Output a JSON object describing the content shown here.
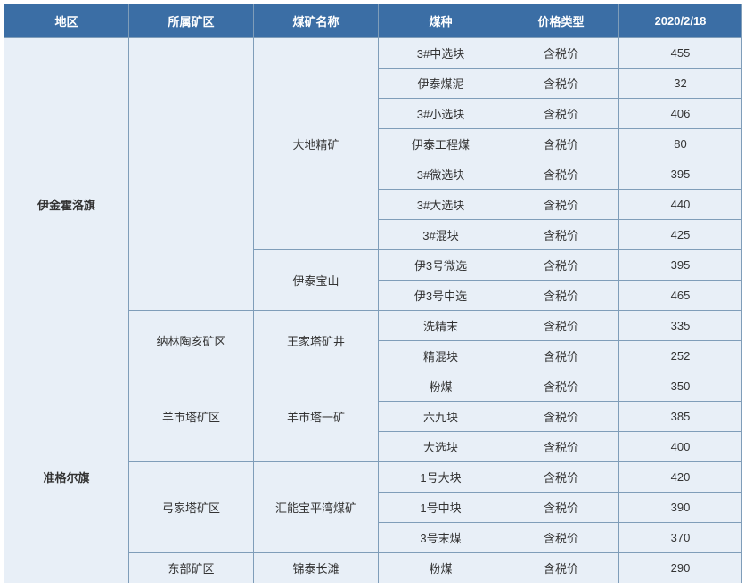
{
  "table": {
    "headers": [
      "地区",
      "所属矿区",
      "煤矿名称",
      "煤种",
      "价格类型",
      "2020/2/18"
    ],
    "rows": [
      {
        "region": "伊金霍洛旗",
        "area": "",
        "mine": "大地精矿",
        "coal": "3#中选块",
        "price_type": "含税价",
        "value": "455"
      },
      {
        "region": "",
        "area": "",
        "mine": "",
        "coal": "伊泰煤泥",
        "price_type": "含税价",
        "value": "32"
      },
      {
        "region": "",
        "area": "",
        "mine": "",
        "coal": "3#小选块",
        "price_type": "含税价",
        "value": "406"
      },
      {
        "region": "",
        "area": "",
        "mine": "",
        "coal": "伊泰工程煤",
        "price_type": "含税价",
        "value": "80"
      },
      {
        "region": "",
        "area": "",
        "mine": "",
        "coal": "3#微选块",
        "price_type": "含税价",
        "value": "395"
      },
      {
        "region": "",
        "area": "",
        "mine": "",
        "coal": "3#大选块",
        "price_type": "含税价",
        "value": "440"
      },
      {
        "region": "",
        "area": "",
        "mine": "",
        "coal": "3#混块",
        "price_type": "含税价",
        "value": "425"
      },
      {
        "region": "",
        "area": "",
        "mine": "伊泰宝山",
        "coal": "伊3号微选",
        "price_type": "含税价",
        "value": "395"
      },
      {
        "region": "",
        "area": "",
        "mine": "",
        "coal": "伊3号中选",
        "price_type": "含税价",
        "value": "465"
      },
      {
        "region": "",
        "area": "纳林陶亥矿区",
        "mine": "王家塔矿井",
        "coal": "洗精末",
        "price_type": "含税价",
        "value": "335"
      },
      {
        "region": "",
        "area": "",
        "mine": "",
        "coal": "精混块",
        "price_type": "含税价",
        "value": "252"
      },
      {
        "region": "准格尔旗",
        "area": "羊市塔矿区",
        "mine": "羊市塔一矿",
        "coal": "粉煤",
        "price_type": "含税价",
        "value": "350"
      },
      {
        "region": "",
        "area": "",
        "mine": "",
        "coal": "六九块",
        "price_type": "含税价",
        "value": "385"
      },
      {
        "region": "",
        "area": "",
        "mine": "",
        "coal": "大选块",
        "price_type": "含税价",
        "value": "400"
      },
      {
        "region": "",
        "area": "弓家塔矿区",
        "mine": "汇能宝平湾煤矿",
        "coal": "1号大块",
        "price_type": "含税价",
        "value": "420"
      },
      {
        "region": "",
        "area": "",
        "mine": "",
        "coal": "1号中块",
        "price_type": "含税价",
        "value": "390"
      },
      {
        "region": "",
        "area": "",
        "mine": "",
        "coal": "3号末煤",
        "price_type": "含税价",
        "value": "370"
      },
      {
        "region": "",
        "area": "东部矿区",
        "mine": "锦泰长滩",
        "coal": "粉煤",
        "price_type": "含税价",
        "value": "290"
      }
    ],
    "colors": {
      "header_bg": "#3b6ea5",
      "header_text": "#ffffff",
      "cell_bg": "#e8eff7",
      "border": "#7f9db9"
    }
  }
}
